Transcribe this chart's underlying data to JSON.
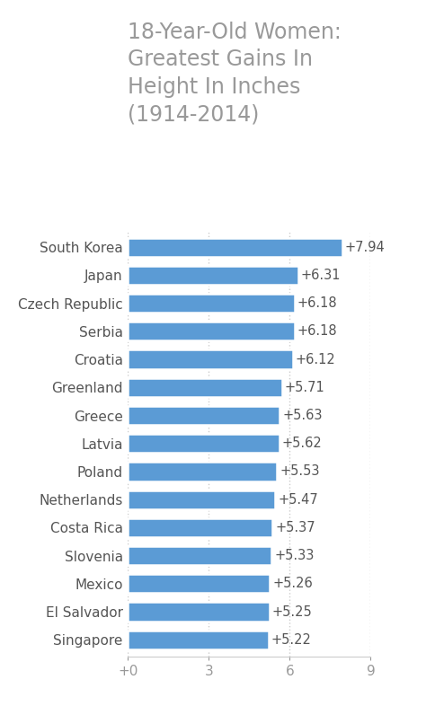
{
  "title": "18-Year-Old Women:\nGreatest Gains In\nHeight In Inches\n(1914-2014)",
  "title_color": "#999999",
  "title_fontsize": 17,
  "categories": [
    "South Korea",
    "Japan",
    "Czech Republic",
    "Serbia",
    "Croatia",
    "Greenland",
    "Greece",
    "Latvia",
    "Poland",
    "Netherlands",
    "Costa Rica",
    "Slovenia",
    "Mexico",
    "El Salvador",
    "Singapore"
  ],
  "values": [
    7.94,
    6.31,
    6.18,
    6.18,
    6.12,
    5.71,
    5.63,
    5.62,
    5.53,
    5.47,
    5.37,
    5.33,
    5.26,
    5.25,
    5.22
  ],
  "bar_color": "#5b9bd5",
  "label_color": "#555555",
  "value_color": "#555555",
  "xlim": [
    0,
    9
  ],
  "xticks": [
    0,
    3,
    6,
    9
  ],
  "xtick_labels": [
    "+0",
    "3",
    "6",
    "9"
  ],
  "background_color": "#ffffff",
  "bar_height": 0.68,
  "label_fontsize": 11,
  "value_fontsize": 10.5,
  "tick_fontsize": 11,
  "tick_color": "#999999",
  "grid_color": "#cccccc"
}
